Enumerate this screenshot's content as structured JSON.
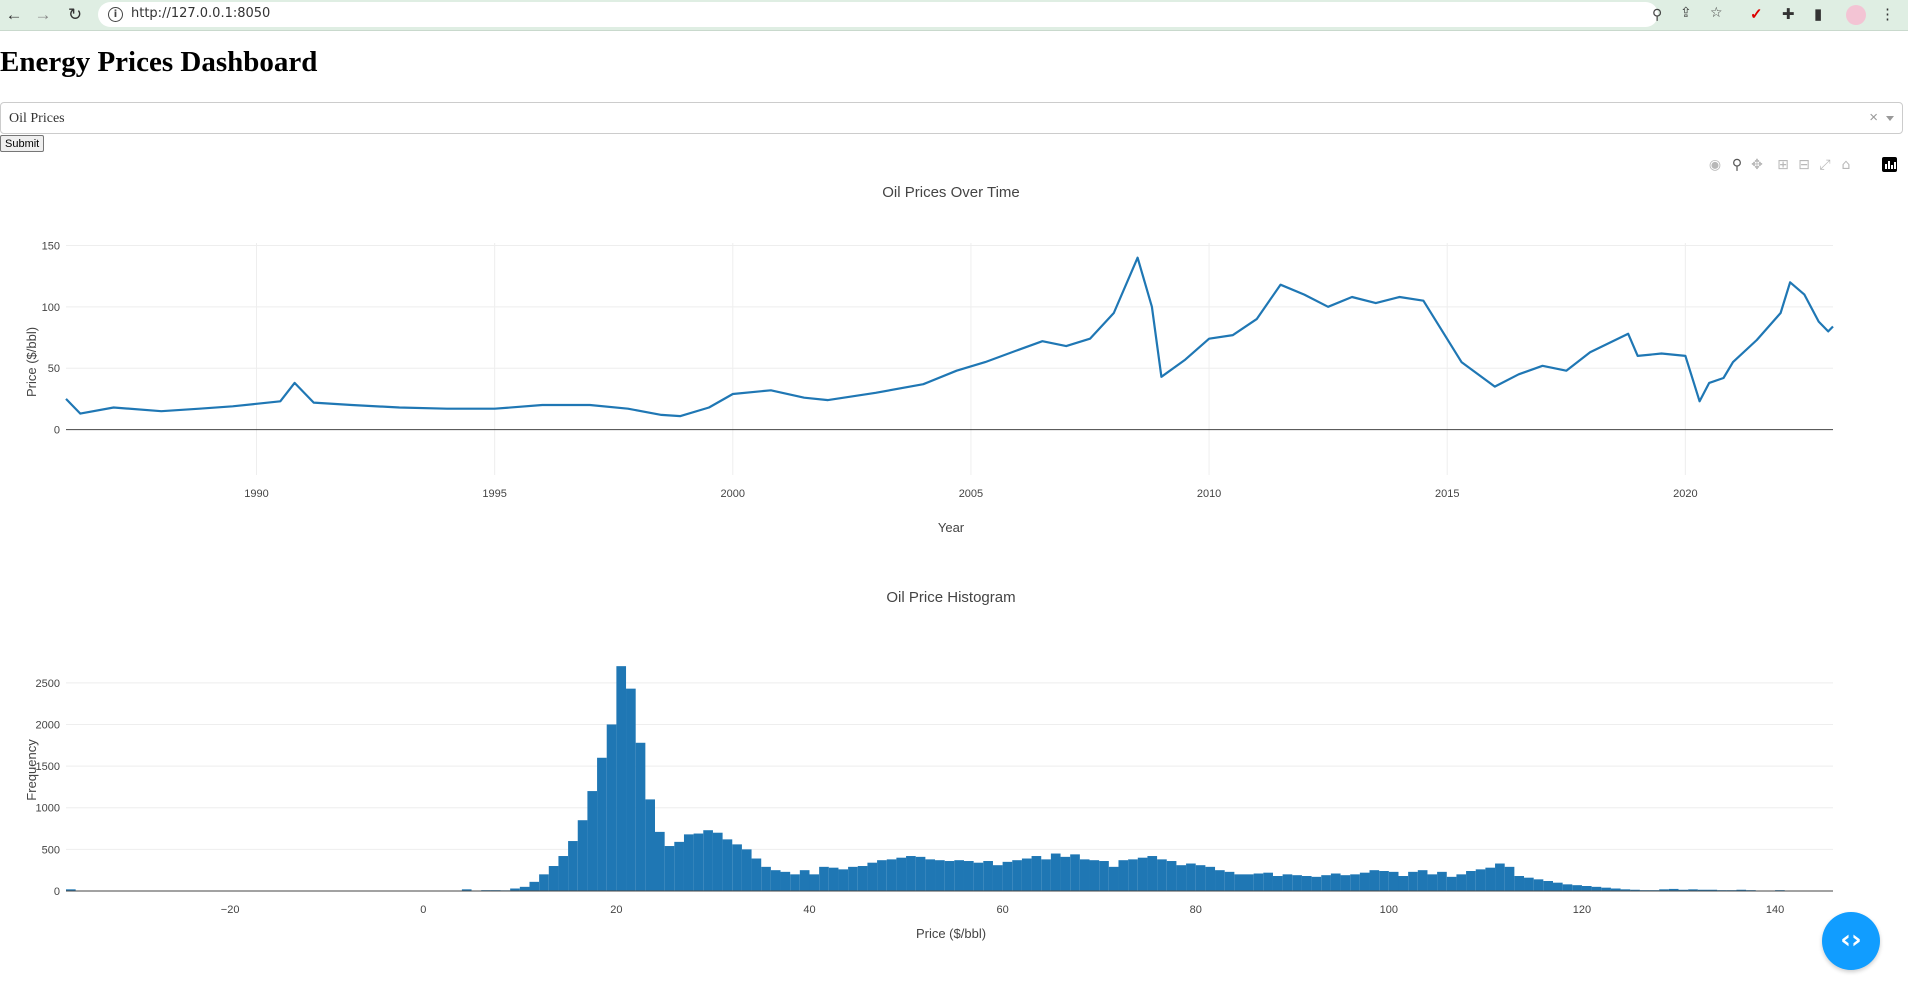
{
  "browser": {
    "url": "http://127.0.0.1:8050",
    "back_icon": "arrow-left-icon",
    "forward_icon": "arrow-right-icon",
    "reload_icon": "reload-icon"
  },
  "page": {
    "title": "Energy Prices Dashboard",
    "dropdown_value": "Oil Prices",
    "submit_label": "Submit"
  },
  "colors": {
    "series": "#1f77b4",
    "dev_button": "#119dff",
    "grid": "#eeeeee"
  },
  "chart_data": [
    {
      "type": "line",
      "title": "Oil Prices Over Time",
      "xlabel": "Year",
      "ylabel": "Price ($/bbl)",
      "xlim": [
        1986.0,
        2023.1
      ],
      "ylim": [
        -37,
        152
      ],
      "x_ticks": [
        1990,
        1995,
        2000,
        2005,
        2010,
        2015,
        2020
      ],
      "y_ticks": [
        0,
        50,
        100,
        150
      ],
      "grid": true,
      "series": [
        {
          "x": [
            1986.0,
            1986.3,
            1987.0,
            1988.0,
            1988.8,
            1989.5,
            1990.0,
            1990.5,
            1990.8,
            1991.2,
            1992.0,
            1993.0,
            1994.0,
            1995.0,
            1996.0,
            1997.0,
            1997.8,
            1998.5,
            1998.9,
            1999.5,
            2000.0,
            2000.8,
            2001.5,
            2002.0,
            2003.0,
            2004.0,
            2004.7,
            2005.3,
            2006.0,
            2006.5,
            2007.0,
            2007.5,
            2008.0,
            2008.5,
            2008.8,
            2009.0,
            2009.5,
            2010.0,
            2010.5,
            2011.0,
            2011.5,
            2012.0,
            2012.5,
            2013.0,
            2013.5,
            2014.0,
            2014.5,
            2014.9,
            2015.3,
            2016.0,
            2016.5,
            2017.0,
            2017.5,
            2018.0,
            2018.8,
            2019.0,
            2019.5,
            2020.0,
            2020.3,
            2020.5,
            2020.8,
            2021.0,
            2021.5,
            2022.0,
            2022.2,
            2022.5,
            2022.8,
            2023.0,
            2023.1
          ],
          "y": [
            25,
            13,
            18,
            15,
            17,
            19,
            21,
            23,
            38,
            22,
            20,
            18,
            17,
            17,
            20,
            20,
            17,
            12,
            11,
            18,
            29,
            32,
            26,
            24,
            30,
            37,
            48,
            55,
            65,
            72,
            68,
            74,
            95,
            140,
            100,
            43,
            57,
            74,
            77,
            90,
            118,
            110,
            100,
            108,
            103,
            108,
            105,
            80,
            55,
            35,
            45,
            52,
            48,
            63,
            78,
            60,
            62,
            60,
            23,
            38,
            42,
            55,
            73,
            95,
            120,
            110,
            88,
            80,
            84
          ]
        }
      ]
    },
    {
      "type": "bar",
      "title": "Oil Price Histogram",
      "xlabel": "Price ($/bbl)",
      "ylabel": "Frequency",
      "xlim": [
        -37,
        146
      ],
      "ylim": [
        0,
        2750
      ],
      "x_ticks": [
        -20,
        0,
        20,
        40,
        60,
        80,
        100,
        120,
        140
      ],
      "y_ticks": [
        0,
        500,
        1000,
        1500,
        2000,
        2500
      ],
      "bin_start": -37,
      "bin_width": 1,
      "values": [
        20,
        0,
        0,
        0,
        0,
        0,
        0,
        0,
        0,
        0,
        0,
        0,
        0,
        0,
        0,
        0,
        0,
        0,
        0,
        0,
        0,
        0,
        0,
        0,
        0,
        0,
        0,
        0,
        0,
        0,
        0,
        0,
        0,
        0,
        0,
        0,
        0,
        0,
        0,
        0,
        5,
        20,
        5,
        10,
        10,
        8,
        30,
        50,
        110,
        200,
        300,
        420,
        600,
        850,
        1200,
        1600,
        2000,
        2700,
        2430,
        1780,
        1100,
        710,
        540,
        590,
        680,
        690,
        730,
        700,
        620,
        560,
        500,
        390,
        290,
        250,
        230,
        200,
        250,
        200,
        290,
        280,
        260,
        290,
        300,
        340,
        370,
        380,
        400,
        420,
        410,
        380,
        370,
        360,
        370,
        360,
        340,
        360,
        310,
        350,
        370,
        390,
        420,
        380,
        450,
        410,
        440,
        380,
        370,
        360,
        290,
        370,
        380,
        400,
        420,
        380,
        360,
        310,
        330,
        310,
        290,
        250,
        230,
        200,
        200,
        210,
        220,
        180,
        200,
        190,
        180,
        170,
        190,
        210,
        190,
        200,
        220,
        250,
        240,
        230,
        180,
        230,
        250,
        200,
        230,
        170,
        200,
        240,
        260,
        280,
        330,
        290,
        180,
        160,
        140,
        120,
        100,
        80,
        70,
        60,
        50,
        40,
        30,
        20,
        15,
        10,
        10,
        20,
        25,
        15,
        20,
        15,
        15,
        10,
        10,
        15,
        10,
        5,
        5,
        10,
        5,
        5
      ]
    }
  ],
  "modebar": {
    "icons": [
      "camera-icon",
      "zoom-icon",
      "pan-icon",
      "zoom-in-icon",
      "zoom-out-icon",
      "autoscale-icon",
      "reset-axes-icon",
      "plotly-logo-icon"
    ]
  },
  "dev_tools": {
    "icon": "code-brackets-icon"
  }
}
